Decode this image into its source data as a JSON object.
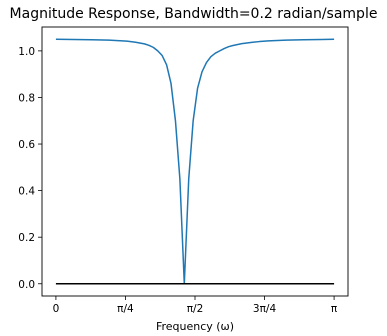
{
  "chart_data": {
    "type": "line",
    "title": "Magnitude Response, Bandwidth=0.2 radian/sample",
    "xlabel": "Frequency (ω)",
    "ylabel": "",
    "xlim": [
      -0.1571,
      3.2987
    ],
    "ylim": [
      -0.0525,
      1.1025
    ],
    "grid": false,
    "legend": "none",
    "xticks": [
      {
        "value": 0,
        "label": "0"
      },
      {
        "value": 0.7854,
        "label": "π/4"
      },
      {
        "value": 1.5708,
        "label": "π/2"
      },
      {
        "value": 2.3562,
        "label": "3π/4"
      },
      {
        "value": 3.1416,
        "label": "π"
      }
    ],
    "yticks": [
      {
        "value": 0.0,
        "label": "0.0"
      },
      {
        "value": 0.2,
        "label": "0.2"
      },
      {
        "value": 0.4,
        "label": "0.4"
      },
      {
        "value": 0.6,
        "label": "0.6"
      },
      {
        "value": 0.8,
        "label": "0.8"
      },
      {
        "value": 1.0,
        "label": "1.0"
      }
    ],
    "series": [
      {
        "color": "#1f77b4",
        "x": [
          0,
          0.2,
          0.4,
          0.6,
          0.8,
          0.9,
          1.0,
          1.05,
          1.1,
          1.15,
          1.2,
          1.25,
          1.3,
          1.35,
          1.4,
          1.45,
          1.5,
          1.55,
          1.6,
          1.65,
          1.7,
          1.75,
          1.8,
          1.85,
          1.9,
          1.95,
          2.0,
          2.1,
          2.2,
          2.3,
          2.4,
          2.6,
          2.8,
          3.0,
          3.1416
        ],
        "y": [
          1.05,
          1.049,
          1.048,
          1.046,
          1.042,
          1.037,
          1.03,
          1.024,
          1.015,
          1.0,
          0.98,
          0.94,
          0.86,
          0.7,
          0.45,
          0.0,
          0.45,
          0.7,
          0.84,
          0.91,
          0.95,
          0.975,
          0.99,
          1.0,
          1.01,
          1.018,
          1.023,
          1.031,
          1.036,
          1.04,
          1.043,
          1.046,
          1.048,
          1.049,
          1.05
        ]
      },
      {
        "color": "#000000",
        "x": [
          0,
          3.1416
        ],
        "y": [
          0,
          0
        ]
      }
    ]
  }
}
